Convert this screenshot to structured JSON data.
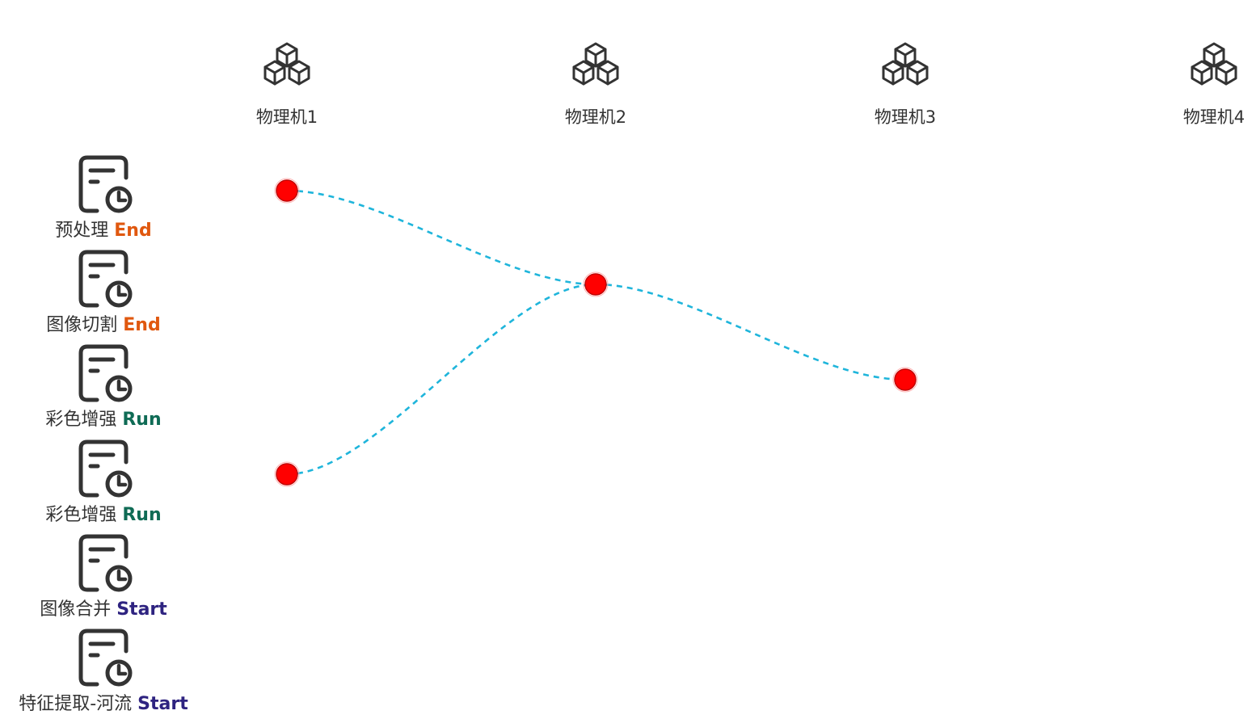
{
  "colors": {
    "edge": "#1fb5db",
    "node": "#ff0000",
    "icon_stroke": "#333333"
  },
  "status_colors": {
    "End": "#e0580f",
    "Run": "#0f6b55",
    "Start": "#2e2380"
  },
  "machines": [
    {
      "label": "物理机1",
      "icon": "cubes-icon"
    },
    {
      "label": "物理机2",
      "icon": "cubes-icon"
    },
    {
      "label": "物理机3",
      "icon": "cubes-icon"
    },
    {
      "label": "物理机4",
      "icon": "cubes-icon"
    }
  ],
  "tasks": [
    {
      "name": "预处理",
      "status": "End",
      "icon": "file-clock-icon"
    },
    {
      "name": "图像切割",
      "status": "End",
      "icon": "file-clock-icon"
    },
    {
      "name": "彩色增强",
      "status": "Run",
      "icon": "file-clock-icon"
    },
    {
      "name": "彩色增强",
      "status": "Run",
      "icon": "file-clock-icon"
    },
    {
      "name": "图像合并",
      "status": "Start",
      "icon": "file-clock-icon"
    },
    {
      "name": "特征提取-河流",
      "status": "Start",
      "icon": "file-clock-icon"
    }
  ],
  "assignments": [
    {
      "task": 0,
      "machine": 0
    },
    {
      "task": 1,
      "machine": 1
    },
    {
      "task": 2,
      "machine": 2
    },
    {
      "task": 3,
      "machine": 0
    }
  ],
  "links": [
    {
      "from": 0,
      "to": 1
    },
    {
      "from": 1,
      "to": 2
    },
    {
      "from": 3,
      "to": 1
    }
  ]
}
